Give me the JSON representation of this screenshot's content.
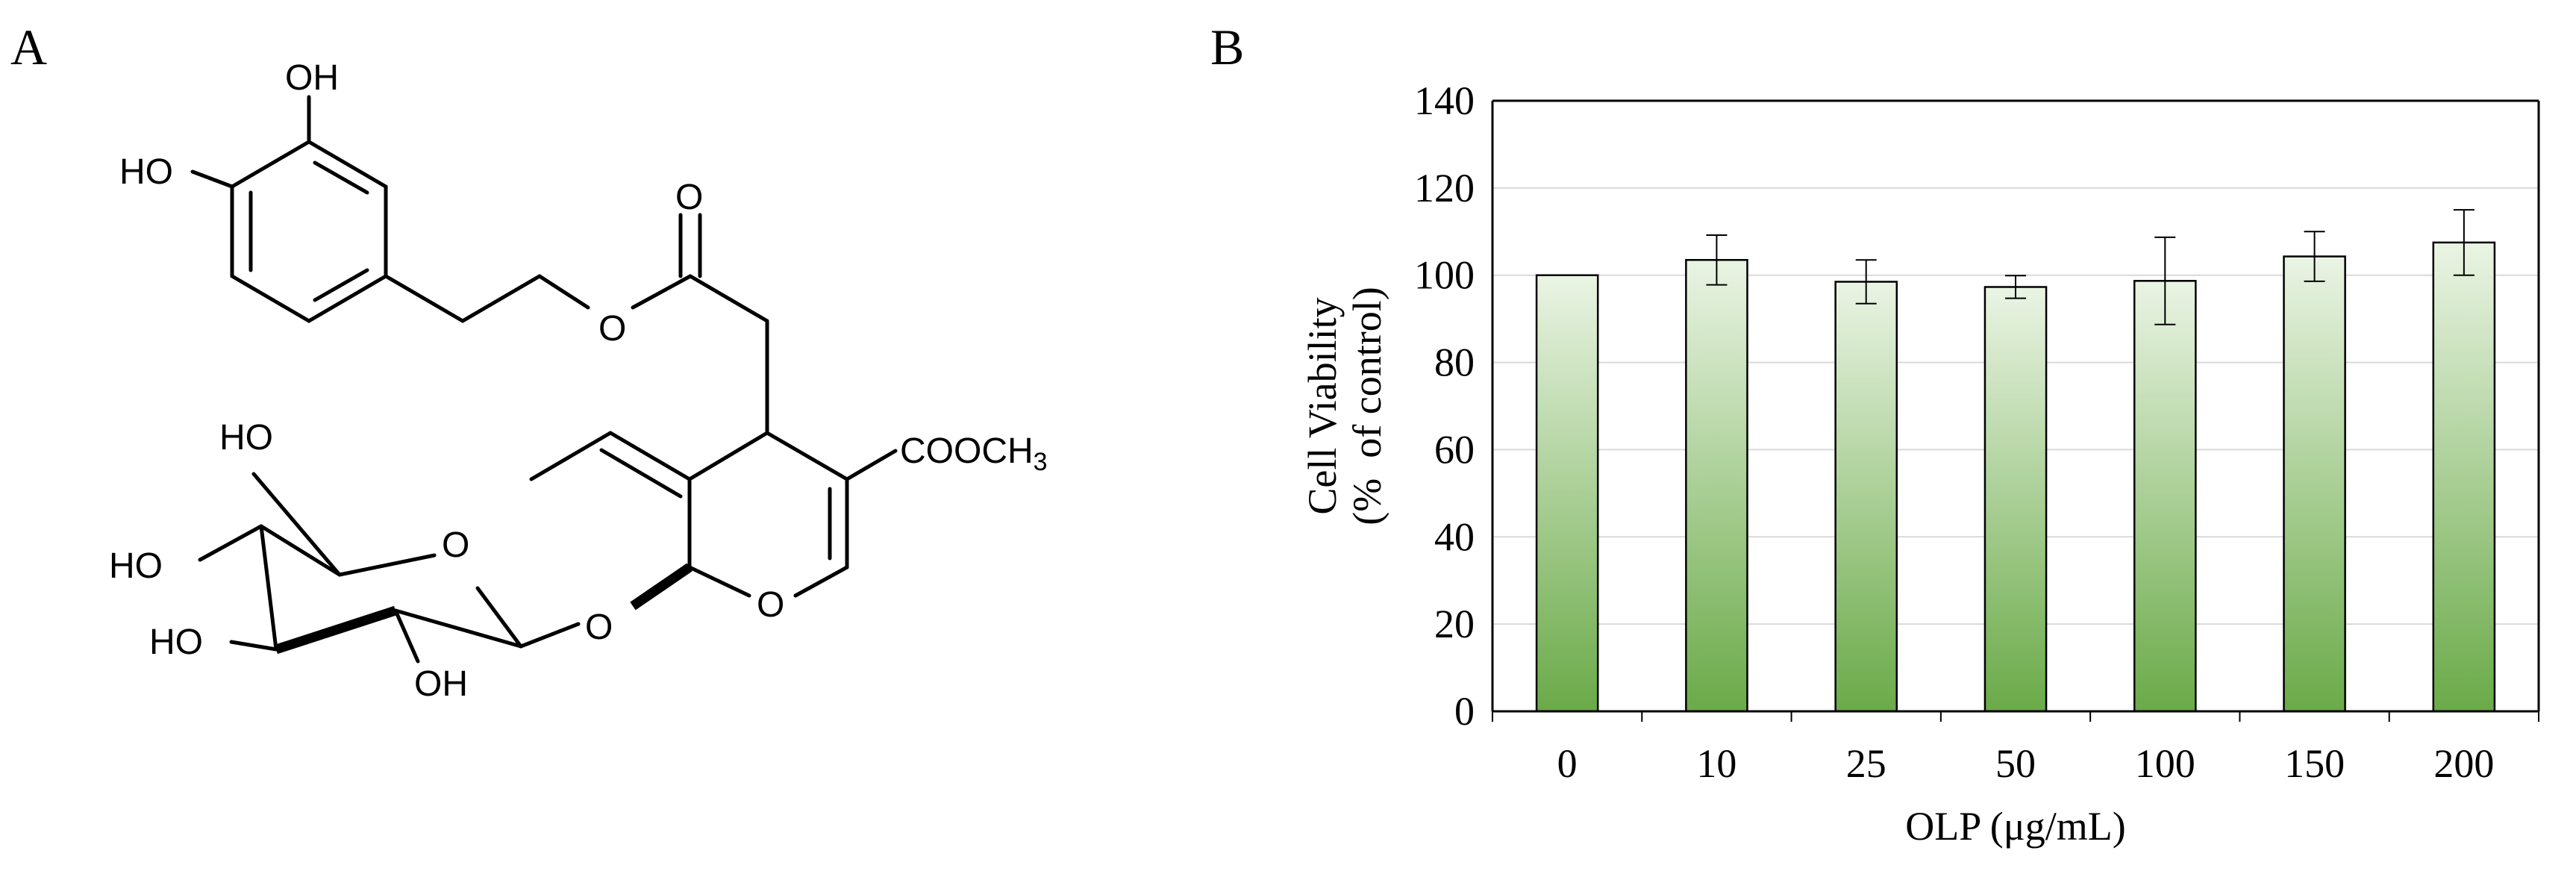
{
  "panel_a": {
    "label": "A",
    "atom_labels": {
      "oh_top": "OH",
      "ho_left": "HO",
      "carbonyl_o": "O",
      "ester_o": "O",
      "ho_ch2": "HO",
      "sugar_ring_o": "O",
      "ho_sugar_c4": "HO",
      "ho_sugar_c3": "HO",
      "oh_sugar_c2": "OH",
      "glycosidic_o": "O",
      "pyran_o": "O",
      "ester_group": "COOCH",
      "ester_group_sub": "3"
    }
  },
  "panel_b": {
    "label": "B"
  },
  "chart_data": {
    "type": "bar",
    "title": "",
    "xlabel": "OLP (μg/mL)",
    "ylabel_line1": "Cell Viability",
    "ylabel_line2": "(%  of control)",
    "categories": [
      "0",
      "10",
      "25",
      "50",
      "100",
      "150",
      "200"
    ],
    "values": [
      100,
      103.5,
      98.5,
      97.3,
      98.7,
      104.3,
      107.5
    ],
    "errors": [
      0,
      5.7,
      5,
      2.6,
      10,
      5.7,
      7.5
    ],
    "ylim": [
      0,
      140
    ],
    "yticks": [
      "0",
      "20",
      "40",
      "60",
      "80",
      "100",
      "120",
      "140"
    ],
    "grid": true,
    "bar_color_top": "#eaf4e4",
    "bar_color_bottom": "#6aaa48"
  }
}
